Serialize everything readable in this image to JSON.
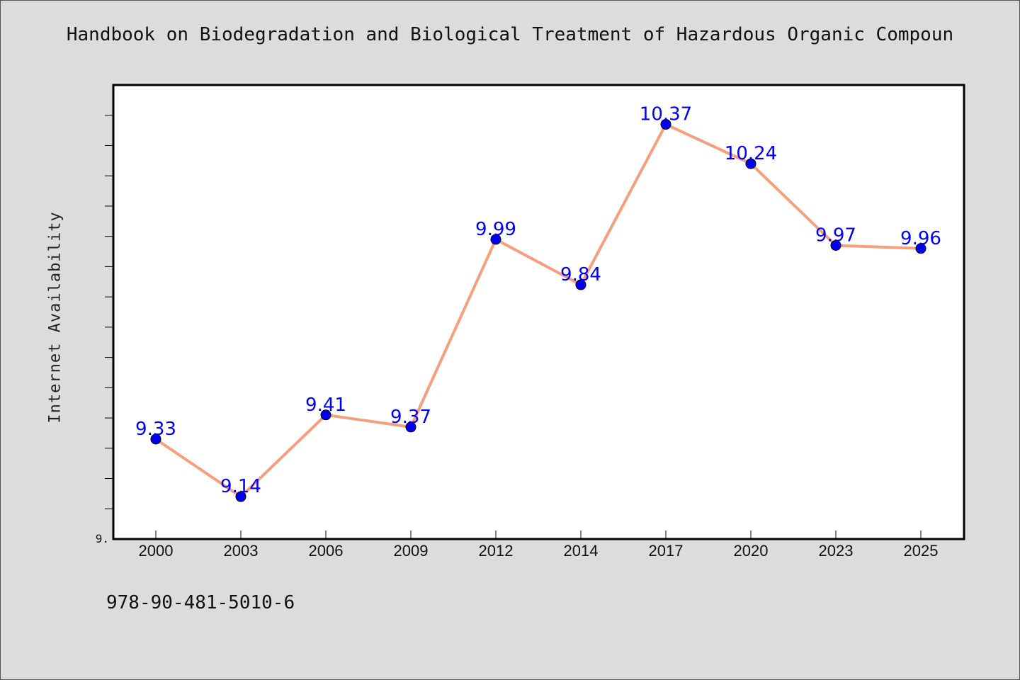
{
  "title": "Handbook on Biodegradation and Biological Treatment of Hazardous Organic Compoun",
  "footer_text": "978-90-481-5010-6",
  "chart_data": {
    "type": "line",
    "title": "Handbook on Biodegradation and Biological Treatment of Hazardous Organic Compoun",
    "xlabel": "",
    "ylabel": "Internet Availability",
    "categories": [
      "2000",
      "2003",
      "2006",
      "2009",
      "2012",
      "2014",
      "2017",
      "2020",
      "2023",
      "2025"
    ],
    "series": [
      {
        "values": [
          9.33,
          9.14,
          9.41,
          9.37,
          9.99,
          9.84,
          10.37,
          10.24,
          9.97,
          9.96
        ]
      }
    ],
    "data_labels": [
      "9.33",
      "9.14",
      "9.41",
      "9.37",
      "9.99",
      "9.84",
      "10.37",
      "10.24",
      "9.97",
      "9.96"
    ],
    "ylim": [
      9.0,
      10.5
    ],
    "y_tick_labels": [
      "9."
    ],
    "grid": false,
    "line_color": "#f4a07c",
    "marker_color": "#0000ee",
    "label_color": "#0000ee"
  }
}
